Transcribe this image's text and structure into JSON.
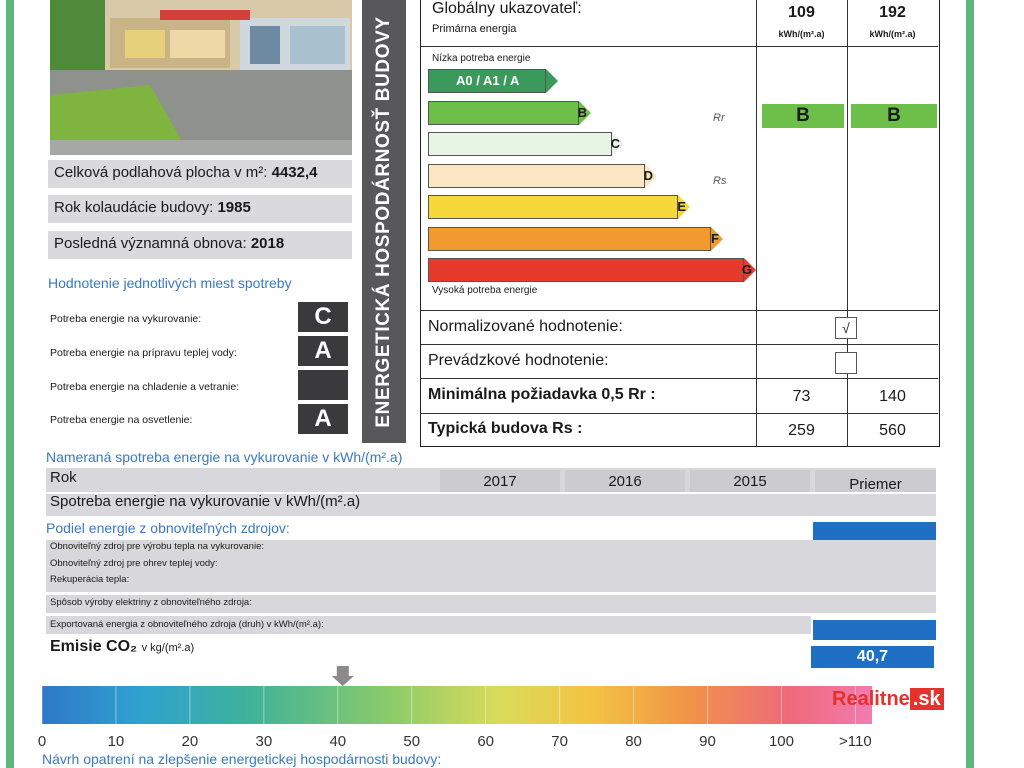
{
  "photo": {
    "alt": "building-photo"
  },
  "building": {
    "floor_area_label": "Celková podlahová plocha v m²:",
    "floor_area_value": "4432,4",
    "approval_label": "Rok kolaudácie budovy:",
    "approval_value": "1985",
    "renovation_label": "Posledná významná obnova:",
    "renovation_value": "2018"
  },
  "consumption_points": {
    "title": "Hodnotenie jednotlivých miest spotreby",
    "items": [
      {
        "label": "Potreba energie na vykurovanie:",
        "class": "C"
      },
      {
        "label": "Potreba energie na prípravu teplej vody:",
        "class": "A"
      },
      {
        "label": "Potreba energie na chladenie a vetranie:",
        "class": ""
      },
      {
        "label": "Potreba energie na osvetlenie:",
        "class": "A"
      }
    ]
  },
  "vertical_title": "ENERGETICKÁ HOSPODÁRNOSŤ BUDOVY",
  "global_indicator": {
    "title": "Globálny ukazovateľ:",
    "subtitle": "Primárna energia",
    "value1": "109",
    "value2": "192",
    "unit1": "kWh/(m².a)",
    "unit2": "kWh/(m².a)",
    "low_label": "Nízka potreba energie",
    "high_label": "Vysoká potreba energie",
    "rr_label": "Rr",
    "rs_label": "Rs",
    "class1": "B",
    "class2": "B"
  },
  "scale": [
    {
      "label": "A0 / A1 / A",
      "color": "#3a9a5b",
      "text_color": "#ffffff"
    },
    {
      "label": "B",
      "color": "#6cc04a",
      "text_color": "#1b1b1b"
    },
    {
      "label": "C",
      "color": "#e8f4e6",
      "text_color": "#1b1b1b"
    },
    {
      "label": "D",
      "color": "#fbe6c4",
      "text_color": "#1b1b1b"
    },
    {
      "label": "E",
      "color": "#f7d83a",
      "text_color": "#1b1b1b"
    },
    {
      "label": "F",
      "color": "#f29a2e",
      "text_color": "#1b1b1b"
    },
    {
      "label": "G",
      "color": "#e53a2c",
      "text_color": "#1b1b1b"
    }
  ],
  "rating_rows": {
    "normalized_label": "Normalizované hodnotenie:",
    "normalized_mark": "√",
    "operational_label": "Prevádzkové hodnotenie:",
    "min_label": "Minimálna požiadavka 0,5 Rr :",
    "min_value1": "73",
    "min_value2": "140",
    "typical_label": "Typická budova Rs :",
    "typical_value1": "259",
    "typical_value2": "560"
  },
  "measured": {
    "title": "Nameraná spotreba energie na vykurovanie v kWh/(m².a)",
    "row_year": "Rok",
    "row_consumption": "Spotreba energie na vykurovanie v kWh/(m².a)",
    "years": [
      "2017",
      "2016",
      "2015",
      "Priemer"
    ]
  },
  "renewable": {
    "title": "Podiel energie z obnoviteľných zdrojov:",
    "items": [
      "Obnoviteľný zdroj pre výrobu tepla na vykurovanie:",
      "Obnoviteľný zdroj pre ohrev teplej vody:",
      "Rekuperácia tepla:",
      "Spôsob výroby elektriny z obnoviteľného zdroja:",
      "Exportovaná energia z obnoviteľného zdroja (druh) v kWh/(m².a):"
    ]
  },
  "co2": {
    "label": "Emisie CO₂",
    "unit": "v kg/(m².a)",
    "value": "40,7",
    "marker_value": 40,
    "scale_ticks": [
      "0",
      "10",
      "20",
      "30",
      "40",
      "50",
      "60",
      "70",
      "80",
      "90",
      "100",
      ">110"
    ]
  },
  "footer_text": "Návrh opatrení na zlepšenie energetickej hospodárnosti budovy:",
  "watermark": {
    "part1": "Realitne",
    "part2": ".sk",
    "color1": "#e5322d",
    "color2": "#e5322d"
  }
}
